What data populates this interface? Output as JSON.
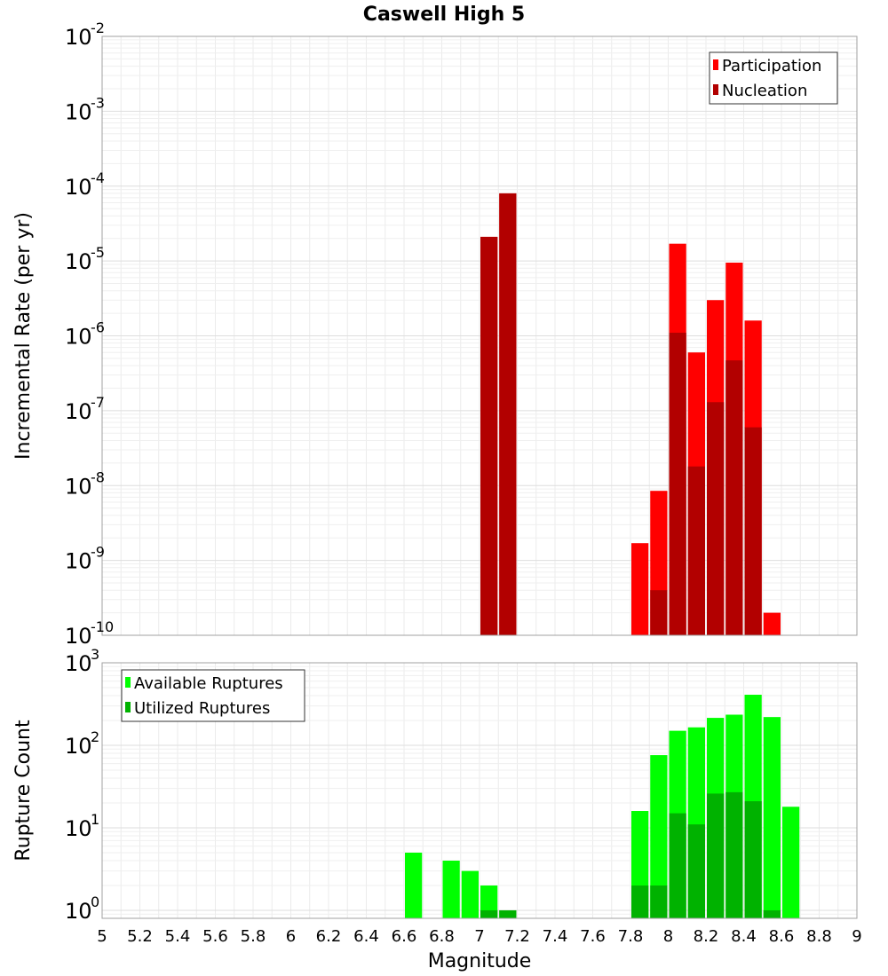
{
  "chart_data": [
    {
      "type": "bar",
      "title": "Caswell High 5",
      "ylabel": "Incremental Rate (per yr)",
      "xlabel": "",
      "xlim": [
        5,
        9
      ],
      "ylim": [
        1e-10,
        0.01
      ],
      "yscale": "log",
      "bin_width": 0.1,
      "grid": true,
      "legend": "top-right",
      "series": [
        {
          "name": "Participation",
          "color": "#ff0000",
          "x": [
            7.05,
            7.15,
            7.85,
            7.95,
            8.05,
            8.15,
            8.25,
            8.35,
            8.45,
            8.55
          ],
          "values": [
            2.1e-05,
            8e-05,
            1.7e-09,
            8.5e-09,
            1.7e-05,
            6e-07,
            3e-06,
            9.5e-06,
            1.6e-06,
            2e-10
          ]
        },
        {
          "name": "Nucleation",
          "color": "#b20000",
          "x": [
            7.05,
            7.15,
            7.95,
            8.05,
            8.15,
            8.25,
            8.35,
            8.45
          ],
          "values": [
            2.1e-05,
            8e-05,
            4e-10,
            1.1e-06,
            1.8e-08,
            1.3e-07,
            4.7e-07,
            6e-08
          ]
        }
      ]
    },
    {
      "type": "bar",
      "title": "",
      "ylabel": "Rupture Count",
      "xlabel": "Magnitude",
      "xlim": [
        5,
        9
      ],
      "ylim": [
        0.8,
        1000
      ],
      "yscale": "log",
      "bin_width": 0.1,
      "grid": true,
      "legend": "top-left",
      "x_ticks": [
        "5",
        "5.2",
        "5.4",
        "5.6",
        "5.8",
        "6",
        "6.2",
        "6.4",
        "6.6",
        "6.8",
        "7",
        "7.2",
        "7.4",
        "7.6",
        "7.8",
        "8",
        "8.2",
        "8.4",
        "8.6",
        "8.8",
        "9"
      ],
      "series": [
        {
          "name": "Available Ruptures",
          "color": "#00ff00",
          "x": [
            6.65,
            6.85,
            6.95,
            7.05,
            7.15,
            7.85,
            7.95,
            8.05,
            8.15,
            8.25,
            8.35,
            8.45,
            8.55,
            8.65
          ],
          "values": [
            5,
            4,
            3,
            2,
            1,
            16,
            76,
            150,
            165,
            215,
            235,
            410,
            220,
            18
          ]
        },
        {
          "name": "Utilized Ruptures",
          "color": "#00b200",
          "x": [
            7.05,
            7.15,
            7.85,
            7.95,
            8.05,
            8.15,
            8.25,
            8.35,
            8.45,
            8.55
          ],
          "values": [
            1,
            1,
            2,
            2,
            15,
            11,
            26,
            27,
            21,
            1
          ]
        }
      ]
    }
  ]
}
